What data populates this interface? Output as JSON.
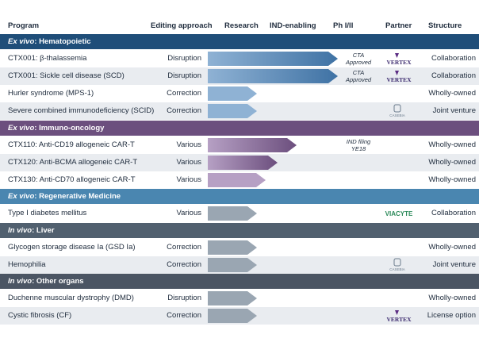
{
  "header": {
    "program": "Program",
    "editing": "Editing approach",
    "research": "Research",
    "ind": "IND-enabling",
    "ph": "Ph I/II",
    "partner": "Partner",
    "structure": "Structure"
  },
  "colors": {
    "navy": "#1f4e79",
    "purple": "#6c4f7e",
    "teal": "#4a86b0",
    "slate": "#51606f",
    "gray": "#4b5563",
    "bar_blue": "#8fb2d4",
    "bar_blue_dark": "#3f72a4",
    "bar_purple": "#b6a0c4",
    "bar_purple_dark": "#6c4f7e",
    "bar_gray": "#9aa6b2"
  },
  "bands": {
    "hema_prefix": "Ex vivo",
    "hema_rest": ": Hematopoietic",
    "immuno_prefix": "Ex vivo",
    "immuno_rest": ": Immuno-oncology",
    "regen_prefix": "Ex vivo",
    "regen_rest": ": Regenerative Medicine",
    "liver_prefix": "In vivo",
    "liver_rest": ": Liver",
    "other_prefix": "In vivo",
    "other_rest": ": Other organs"
  },
  "rows": [
    {
      "program": "CTX001: β-thalassemia",
      "editing": "Disruption",
      "structure": "Collaboration",
      "note": "CTA Approved",
      "partner_logo": "vertex-logo",
      "progress": 1.0
    },
    {
      "program": "CTX001: Sickle cell disease (SCD)",
      "editing": "Disruption",
      "structure": "Collaboration",
      "note": "CTA Approved",
      "partner_logo": "vertex-logo",
      "progress": 1.0
    },
    {
      "program": "Hurler syndrome (MPS-1)",
      "editing": "Correction",
      "structure": "Wholly-owned",
      "note": "",
      "partner_logo": "",
      "progress": 0.33
    },
    {
      "program": "Severe combined immunodeficiency (SCID)",
      "editing": "Correction",
      "structure": "Joint venture",
      "note": "",
      "partner_logo": "casebia-logo",
      "progress": 0.33
    },
    {
      "program": "CTX110: Anti-CD19 allogeneic CAR-T",
      "editing": "Various",
      "structure": "Wholly-owned",
      "note": "IND filing YE18",
      "partner_logo": "",
      "progress": 0.66
    },
    {
      "program": "CTX120: Anti-BCMA allogeneic CAR-T",
      "editing": "Various",
      "structure": "Wholly-owned",
      "note": "",
      "partner_logo": "",
      "progress": 0.5
    },
    {
      "program": "CTX130: Anti-CD70 allogeneic CAR-T",
      "editing": "Various",
      "structure": "Wholly-owned",
      "note": "",
      "partner_logo": "",
      "progress": 0.4
    },
    {
      "program": "Type I diabetes mellitus",
      "editing": "Various",
      "structure": "Collaboration",
      "note": "",
      "partner_logo": "viacyte-logo",
      "progress": 0.33
    },
    {
      "program": "Glycogen storage disease Ia (GSD Ia)",
      "editing": "Correction",
      "structure": "Wholly-owned",
      "note": "",
      "partner_logo": "",
      "progress": 0.33
    },
    {
      "program": "Hemophilia",
      "editing": "Correction",
      "structure": "Joint venture",
      "note": "",
      "partner_logo": "casebia-logo",
      "progress": 0.33
    },
    {
      "program": "Duchenne muscular dystrophy (DMD)",
      "editing": "Disruption",
      "structure": "Wholly-owned",
      "note": "",
      "partner_logo": "",
      "progress": 0.33
    },
    {
      "program": "Cystic fibrosis (CF)",
      "editing": "Correction",
      "structure": "License option",
      "note": "",
      "partner_logo": "vertex-logo",
      "progress": 0.33
    }
  ],
  "logos": {
    "vertex": "VERTEX",
    "casebia": "CASEBIA",
    "viacyte": "VIACYTE"
  }
}
